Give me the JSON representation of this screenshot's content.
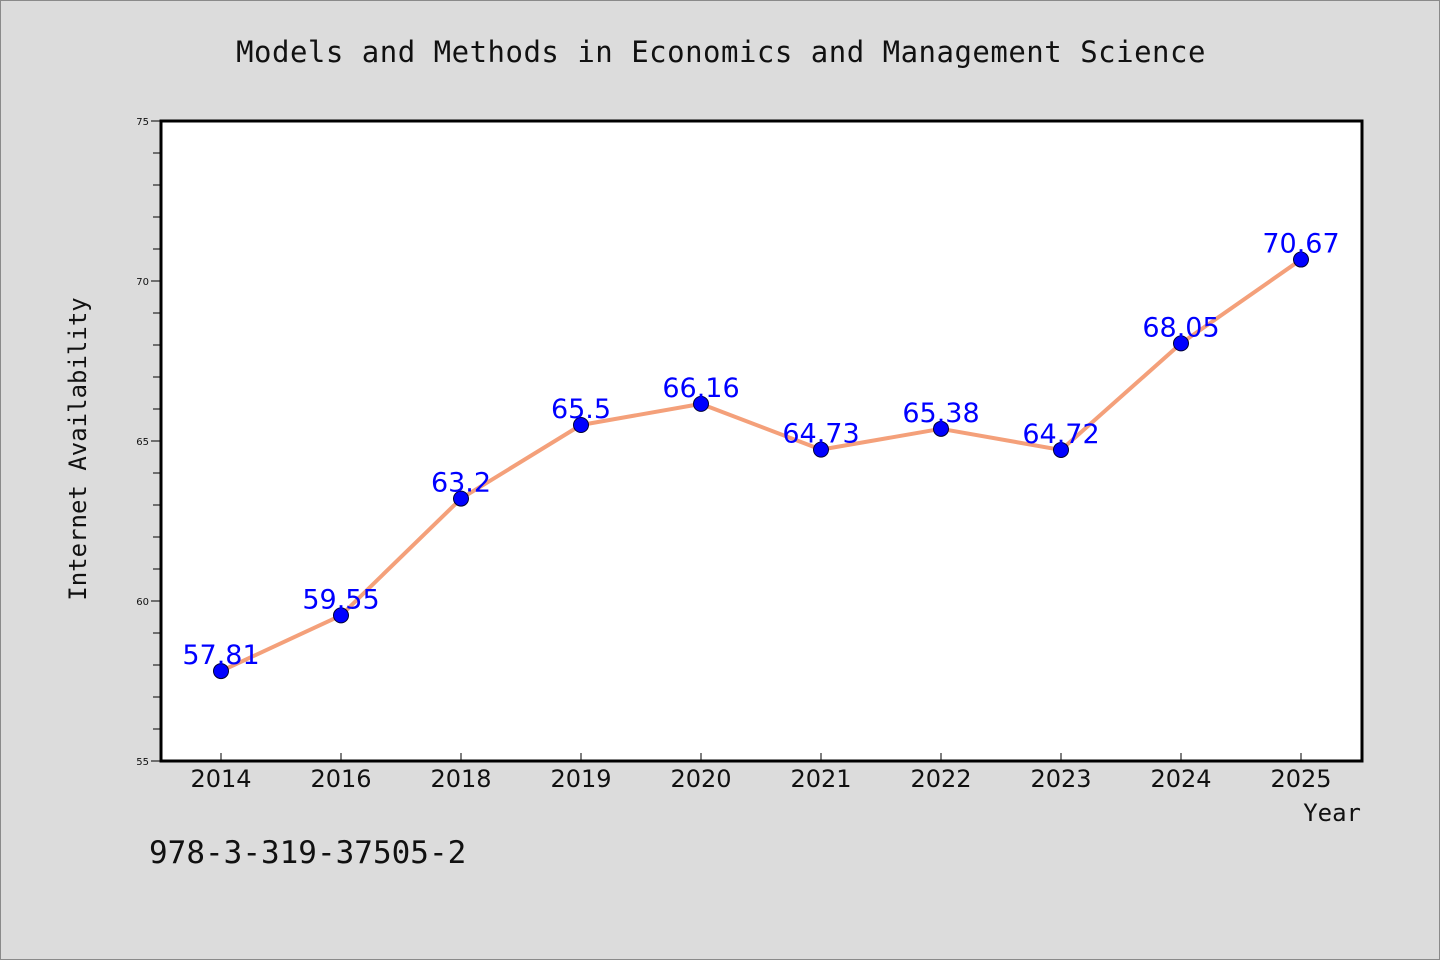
{
  "chart_data": {
    "type": "line",
    "title": "Models and Methods in Economics and Management Science",
    "xlabel": "Year",
    "ylabel": "Internet Availability",
    "categories": [
      "2014",
      "2016",
      "2018",
      "2019",
      "2020",
      "2021",
      "2022",
      "2023",
      "2024",
      "2025"
    ],
    "series": [
      {
        "values": [
          57.81,
          59.55,
          63.2,
          65.5,
          66.16,
          64.73,
          65.38,
          64.72,
          68.05,
          70.67
        ],
        "line_color": "#f4a07a",
        "marker_color": "#0000ff"
      }
    ],
    "ylim": [
      55,
      75
    ],
    "yticks": [
      55,
      60,
      65,
      70,
      75
    ],
    "grid": false,
    "legend": "none"
  },
  "footer": {
    "isbn": "978-3-319-37505-2"
  },
  "colors": {
    "background": "#dcdcdc",
    "plot_background": "#ffffff",
    "line": "#f4a07a",
    "marker": "#0000ff",
    "data_label": "#0000ff"
  }
}
